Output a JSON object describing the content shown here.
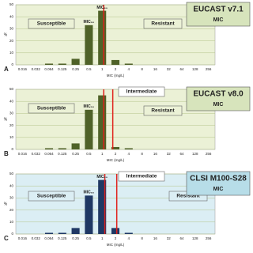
{
  "chart_data": [
    {
      "type": "bar",
      "panel_label": "A",
      "title": "EUCAST v7.1",
      "subtitle": "MIC",
      "categories": [
        "0.016",
        "0.032",
        "0.064",
        "0.125",
        "0.25",
        "0.5",
        "1",
        "2",
        "4",
        "8",
        "16",
        "32",
        "64",
        "128",
        "256"
      ],
      "values": [
        0,
        0,
        1,
        1,
        5,
        33,
        45,
        4,
        1,
        0,
        0,
        0,
        0,
        0,
        0
      ],
      "color": "#4f6228",
      "background": "#ebf1d6",
      "box_color": "#d7e4bc",
      "ylim": [
        0,
        50
      ],
      "yticks": [
        0,
        10,
        20,
        30,
        40,
        50
      ],
      "grid": true,
      "x_label": "MIC (mg/L)",
      "y_label": "%",
      "annotations": {
        "susceptible": "Susceptible",
        "resistant": "Resistant",
        "mic50": "MIC₅₀",
        "mic90": "MIC₉₀"
      }
    },
    {
      "type": "bar",
      "panel_label": "B",
      "title": "EUCAST v8.0",
      "subtitle": "MIC",
      "categories": [
        "0.016",
        "0.032",
        "0.064",
        "0.125",
        "0.25",
        "0.5",
        "1",
        "2",
        "4",
        "8",
        "16",
        "32",
        "64",
        "128",
        "256"
      ],
      "values": [
        0,
        0,
        1,
        1,
        5,
        33,
        45,
        2,
        1,
        0,
        0,
        0,
        0,
        0,
        0
      ],
      "color": "#4f6228",
      "background": "#ebf1d6",
      "box_color": "#d7e4bc",
      "ylim": [
        0,
        50
      ],
      "yticks": [
        0,
        10,
        20,
        30,
        40,
        50
      ],
      "grid": true,
      "x_label": "MIC (mg/L)",
      "y_label": "%",
      "annotations": {
        "susceptible": "Susceptible",
        "intermediate": "Intermediate",
        "resistant": "Resistant",
        "mic50": "MIC₅₀"
      }
    },
    {
      "type": "bar",
      "panel_label": "C",
      "title": "CLSI M100-S28",
      "subtitle": "MIC",
      "categories": [
        "0.016",
        "0.032",
        "0.064",
        "0.125",
        "0.25",
        "0.5",
        "1",
        "2",
        "4",
        "8",
        "16",
        "32",
        "64",
        "128",
        "256"
      ],
      "values": [
        0,
        0,
        1,
        1,
        5,
        32,
        45,
        5,
        1,
        0,
        0,
        0,
        0,
        0,
        0
      ],
      "color": "#1f3864",
      "background": "#dbeef4",
      "box_color": "#b7dde8",
      "ylim": [
        0,
        50
      ],
      "yticks": [
        0,
        10,
        20,
        30,
        40,
        50
      ],
      "grid": true,
      "x_label": "MIC (mg/L)",
      "y_label": "%",
      "annotations": {
        "susceptible": "Susceptible",
        "intermediate": "Intermediate",
        "resistant": "Resistant",
        "mic50": "MIC₅₀",
        "mic90": "MIC₉₀"
      }
    }
  ]
}
